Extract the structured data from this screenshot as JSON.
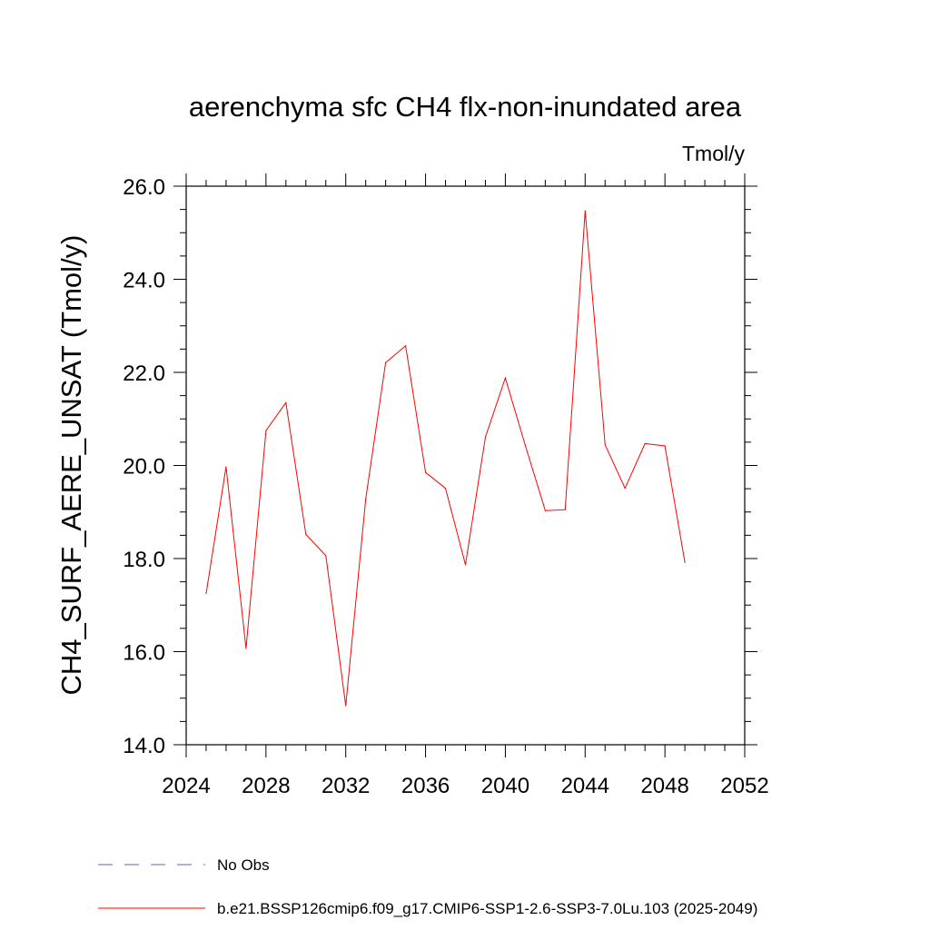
{
  "chart_data": {
    "type": "line",
    "title": "aerenchyma sfc CH4 flx-non-inundated area",
    "units": "Tmol/y",
    "ylabel": "CH4_SURF_AERE_UNSAT  (Tmol/y)",
    "xlabel": "",
    "xlim": [
      2024,
      2052
    ],
    "ylim": [
      14.0,
      26.0
    ],
    "xticks": [
      "2024",
      "2028",
      "2032",
      "2036",
      "2040",
      "2044",
      "2048",
      "2052"
    ],
    "yticks": [
      "14.0",
      "16.0",
      "18.0",
      "20.0",
      "22.0",
      "24.0",
      "26.0"
    ],
    "grid": false,
    "legend_position": "bottom",
    "series": [
      {
        "name": "b.e21.BSSP126cmip6.f09_g17.CMIP6-SSP1-2.6-SSP3-7.0Lu.103 (2025-2049)",
        "color": "#ff0000",
        "x": [
          2025,
          2026,
          2027,
          2028,
          2029,
          2030,
          2031,
          2032,
          2033,
          2034,
          2035,
          2036,
          2037,
          2038,
          2039,
          2040,
          2041,
          2042,
          2043,
          2044,
          2045,
          2046,
          2047,
          2048,
          2049
        ],
        "values": [
          17.25,
          19.97,
          16.07,
          20.75,
          21.35,
          18.52,
          18.06,
          14.84,
          19.28,
          22.21,
          22.57,
          19.85,
          19.51,
          17.87,
          20.61,
          21.88,
          20.43,
          19.03,
          19.05,
          25.47,
          20.44,
          19.51,
          20.47,
          20.42,
          17.92
        ]
      }
    ],
    "legend": [
      {
        "label": "No Obs",
        "color": "#6a5acd",
        "style": "dashed"
      },
      {
        "label": "b.e21.BSSP126cmip6.f09_g17.CMIP6-SSP1-2.6-SSP3-7.0Lu.103 (2025-2049)",
        "color": "#ff0000",
        "style": "solid"
      }
    ]
  }
}
